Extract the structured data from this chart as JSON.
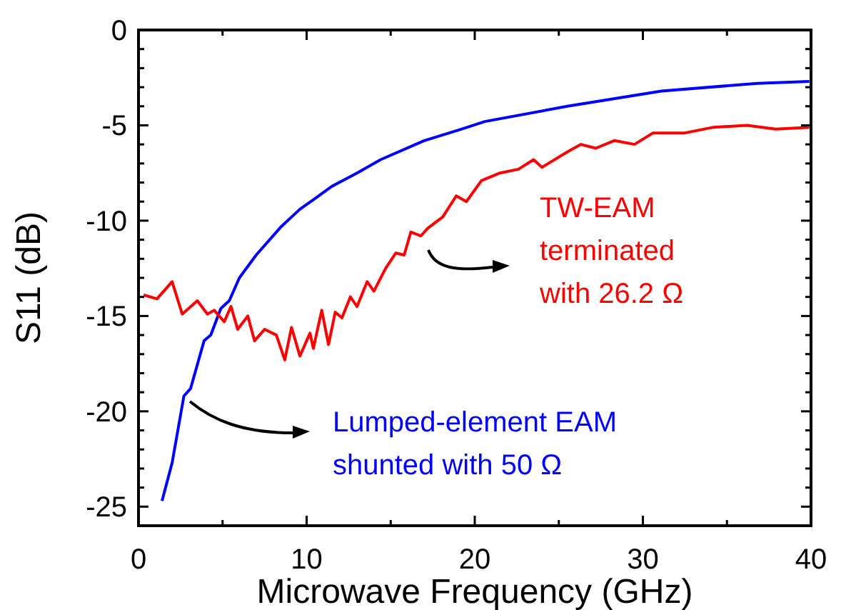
{
  "chart_data": {
    "type": "line",
    "xlabel": "Microwave Frequency (GHz)",
    "ylabel": "S11 (dB)",
    "xlim": [
      0,
      40
    ],
    "ylim": [
      -26,
      0
    ],
    "xticks": [
      0,
      {
        "value": 5,
        "label": null
      },
      10,
      {
        "value": 15,
        "label": null
      },
      20,
      {
        "value": 25,
        "label": null
      },
      30,
      {
        "value": 35,
        "label": null
      },
      40
    ],
    "yticks": [
      0,
      -5,
      -10,
      -15,
      -20,
      -25,
      {
        "value": -1,
        "label": null
      },
      {
        "value": -2,
        "label": null
      },
      {
        "value": -3,
        "label": null
      },
      {
        "value": -4,
        "label": null
      },
      {
        "value": -6,
        "label": null
      },
      {
        "value": -7,
        "label": null
      },
      {
        "value": -8,
        "label": null
      },
      {
        "value": -9,
        "label": null
      },
      {
        "value": -11,
        "label": null
      },
      {
        "value": -12,
        "label": null
      },
      {
        "value": -13,
        "label": null
      },
      {
        "value": -14,
        "label": null
      },
      {
        "value": -16,
        "label": null
      },
      {
        "value": -17,
        "label": null
      },
      {
        "value": -18,
        "label": null
      },
      {
        "value": -19,
        "label": null
      },
      {
        "value": -21,
        "label": null
      },
      {
        "value": -22,
        "label": null
      },
      {
        "value": -23,
        "label": null
      },
      {
        "value": -24,
        "label": null
      }
    ],
    "grid": false,
    "marker": "none",
    "line_style": "solid",
    "series": [
      {
        "name": "Lumped-element EAM\nshunted with 50 Ω",
        "color": "#0000ff",
        "x": [
          1.4,
          2.0,
          2.7,
          3.1,
          3.9,
          4.3,
          4.9,
          5.4,
          6.0,
          7.0,
          8.5,
          9.6,
          10.4,
          11.5,
          13.0,
          14.4,
          17.0,
          19.2,
          20.6,
          25.5,
          31.1,
          36.8,
          39.9
        ],
        "values": [
          -24.7,
          -22.7,
          -19.2,
          -18.8,
          -16.3,
          -16.0,
          -14.6,
          -14.2,
          -13.0,
          -11.8,
          -10.3,
          -9.4,
          -8.9,
          -8.2,
          -7.5,
          -6.8,
          -5.8,
          -5.2,
          -4.8,
          -4.0,
          -3.2,
          -2.8,
          -2.7
        ]
      },
      {
        "name": "TW-EAM\nterminated\nwith 26.2 Ω",
        "color": "#ff0000",
        "x": [
          0.3,
          1.1,
          2.0,
          2.6,
          3.5,
          4.1,
          4.5,
          5.1,
          5.5,
          5.9,
          6.5,
          6.9,
          7.5,
          8.2,
          8.7,
          9.1,
          9.6,
          10.2,
          10.4,
          10.9,
          11.3,
          11.7,
          12.1,
          12.6,
          13.0,
          13.6,
          14.0,
          14.7,
          15.3,
          15.8,
          16.2,
          16.8,
          17.2,
          18.1,
          18.9,
          19.5,
          20.4,
          21.5,
          22.6,
          23.5,
          24.0,
          25.5,
          26.3,
          27.2,
          28.3,
          29.5,
          30.6,
          32.5,
          34.2,
          36.2,
          37.9,
          39.9
        ],
        "values": [
          -13.9,
          -14.1,
          -13.2,
          -14.9,
          -14.2,
          -14.9,
          -14.7,
          -15.3,
          -14.5,
          -15.7,
          -15.0,
          -16.3,
          -15.7,
          -16.0,
          -17.3,
          -15.6,
          -17.1,
          -15.9,
          -16.7,
          -14.7,
          -16.5,
          -14.8,
          -15.1,
          -14.0,
          -14.5,
          -13.2,
          -13.7,
          -12.5,
          -11.7,
          -11.8,
          -10.6,
          -10.8,
          -10.4,
          -9.8,
          -8.7,
          -9.0,
          -7.9,
          -7.5,
          -7.3,
          -6.8,
          -7.2,
          -6.4,
          -6.0,
          -6.2,
          -5.8,
          -6.0,
          -5.4,
          -5.4,
          -5.1,
          -5.0,
          -5.2,
          -5.1
        ]
      }
    ]
  }
}
